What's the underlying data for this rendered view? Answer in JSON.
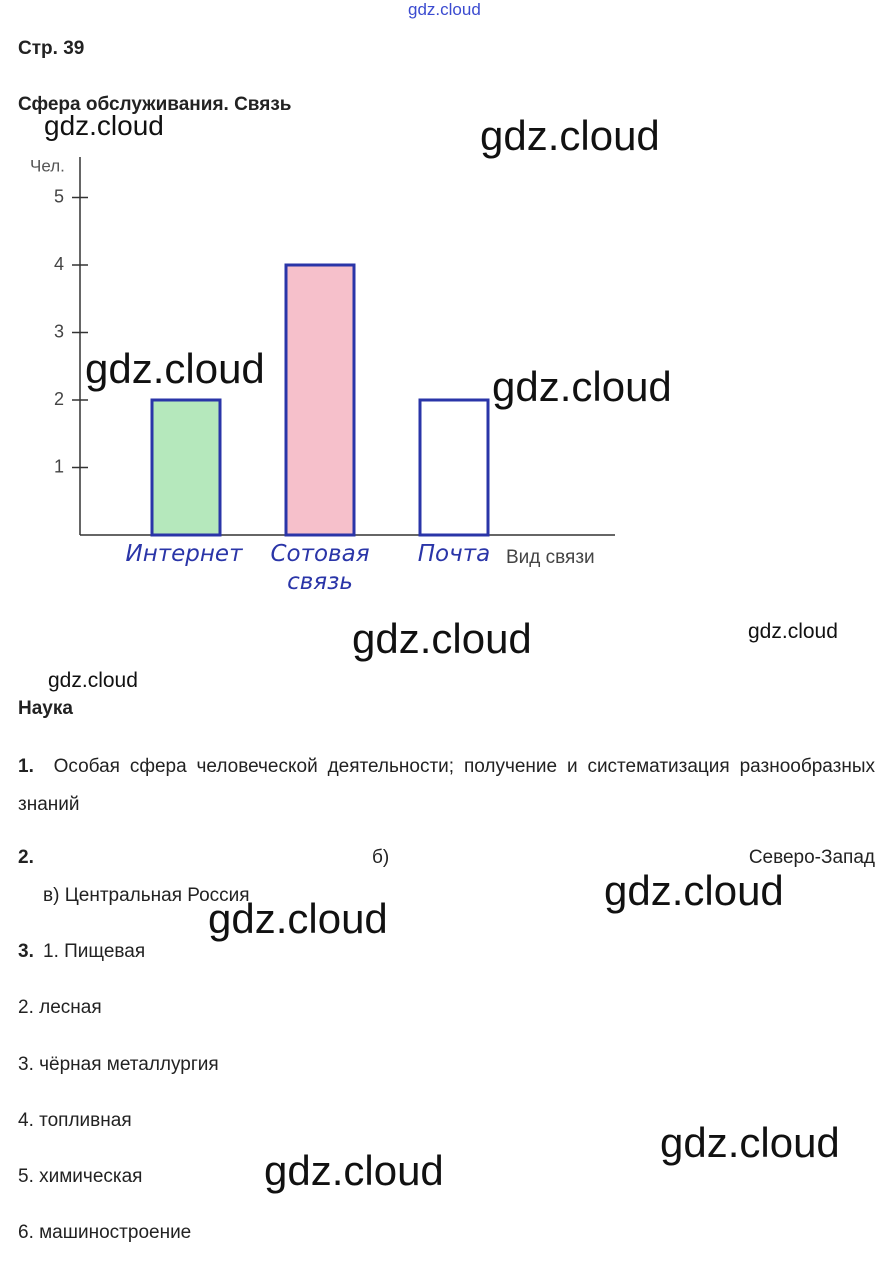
{
  "watermarks": [
    "gdz.cloud",
    "gdz.cloud",
    "gdz.cloud",
    "gdz.cloud",
    "gdz.cloud",
    "gdz.cloud",
    "gdz.cloud",
    "gdz.cloud",
    "gdz.cloud",
    "gdz.cloud",
    "gdz.cloud",
    "gdz.cloud"
  ],
  "page": "Стр. 39",
  "section1_title": "Сфера обслуживания. Связь",
  "chart_data": {
    "type": "bar",
    "y_label": "Чел.",
    "x_label": "Вид связи",
    "categories": [
      "Интернет",
      "Сотовая связь",
      "Почта"
    ],
    "values": [
      2,
      4,
      2
    ],
    "colors": [
      "#b5e8bc",
      "#f6c0cb",
      "#ffffff"
    ],
    "edge_color": "#2a35a8",
    "ylim": [
      0,
      5.6
    ],
    "yticks": [
      1,
      2,
      3,
      4,
      5
    ]
  },
  "section2_title": "Наука",
  "items": [
    {
      "number": "1.",
      "text": "Особая сфера человеческой деятельности; получение и систематизация разнообразных знаний"
    },
    {
      "number": "2.",
      "parts": [
        "б)",
        "Северо-Запад",
        "в) Центральная Россия"
      ]
    },
    {
      "number": "3.",
      "lines": [
        "1. Пищевая",
        "2. лесная",
        "3. чёрная металлургия",
        "4. топливная",
        "5. химическая",
        "6. машиностроение"
      ]
    }
  ]
}
